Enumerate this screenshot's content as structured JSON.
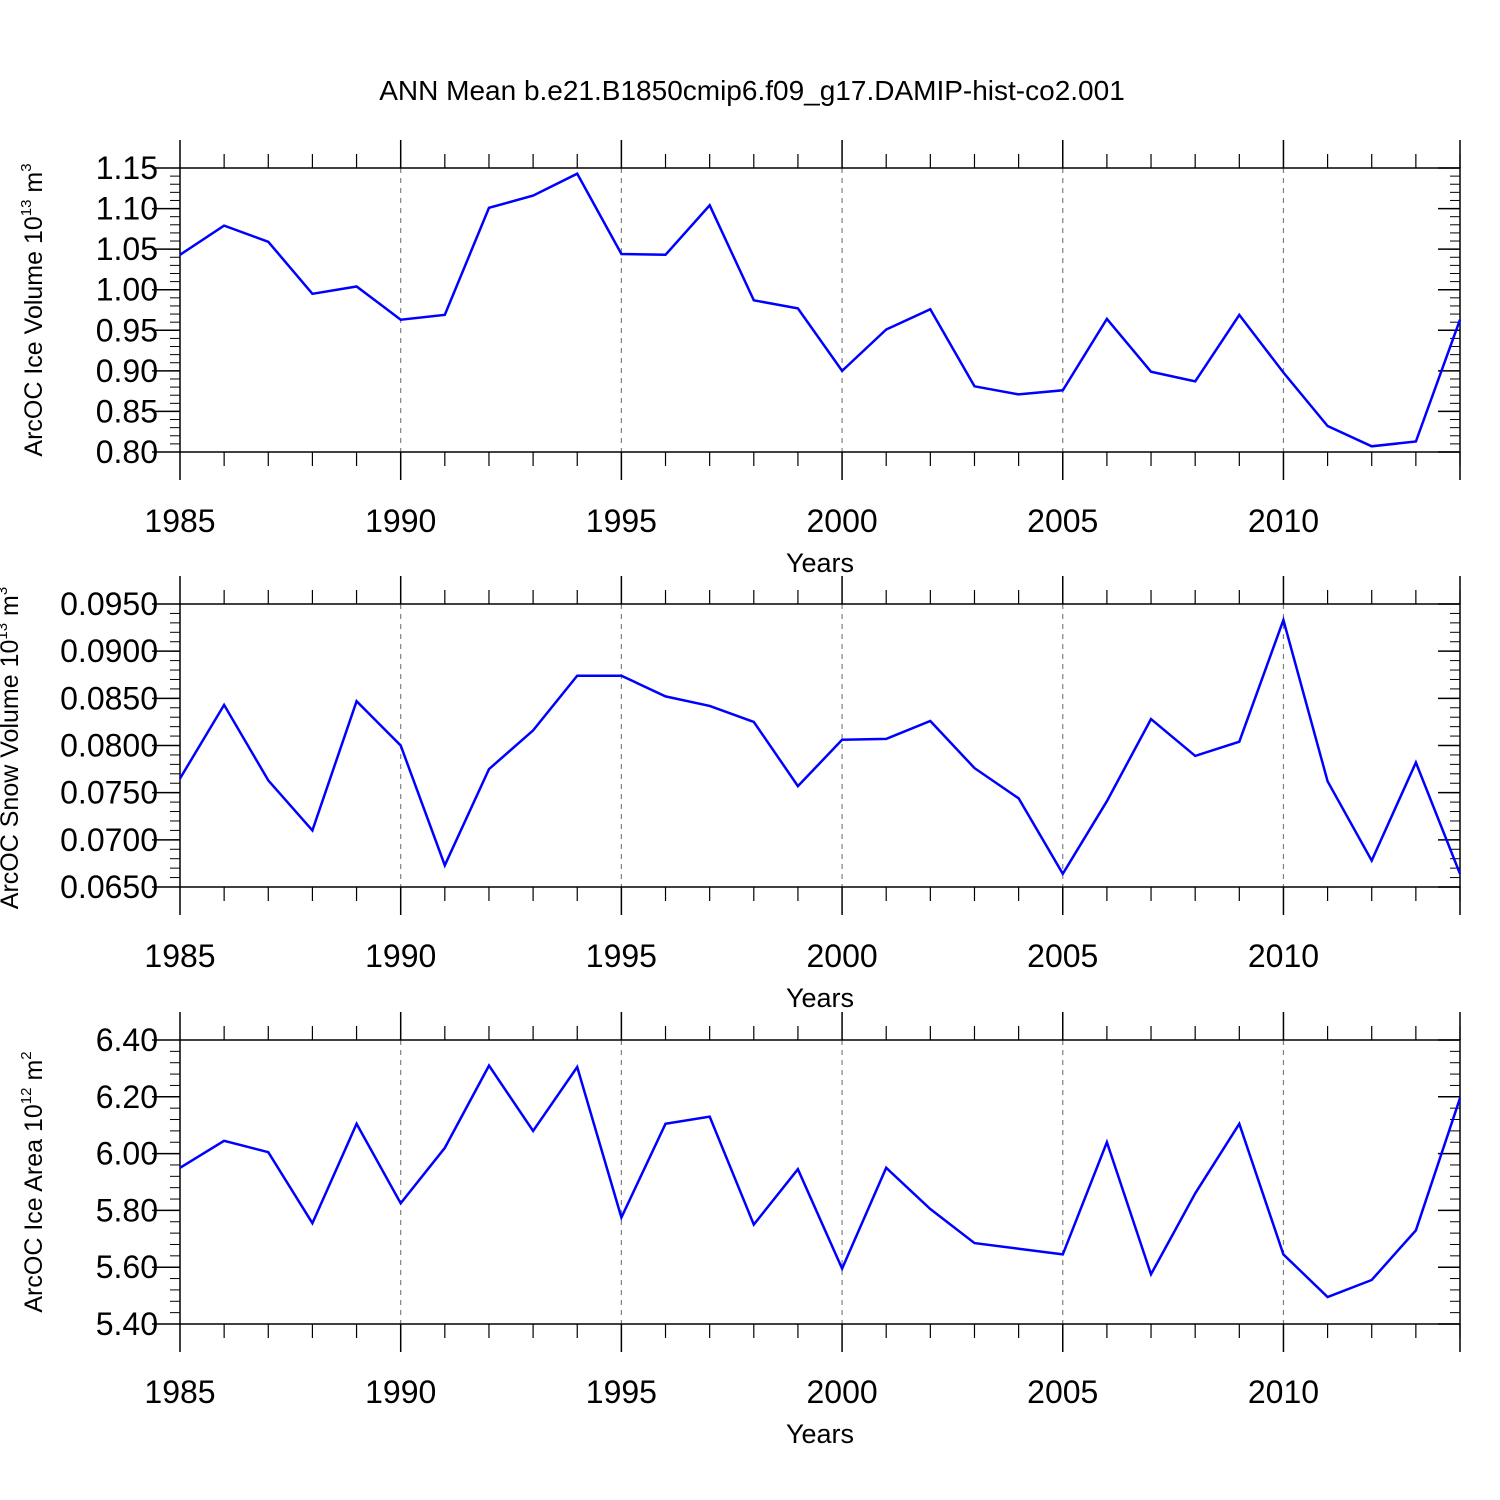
{
  "title": "ANN Mean b.e21.B1850cmip6.f09_g17.DAMIP-hist-co2.001",
  "colors": {
    "line": "#0000ff",
    "axis": "#000000",
    "grid": "#808080",
    "background": "#ffffff"
  },
  "chart_data": [
    {
      "type": "line",
      "title": "",
      "xlabel": "Years",
      "ylabel": {
        "main": "ArcOC Ice Volume 10",
        "sup": "13",
        "unit": " m",
        "unit_sup": "3"
      },
      "xlim": [
        1985,
        2014
      ],
      "ylim": [
        0.8,
        1.15
      ],
      "x_ticks": [
        1985,
        1990,
        1995,
        2000,
        2005,
        2010
      ],
      "x_tick_labels": [
        "1985",
        "1990",
        "1995",
        "2000",
        "2005",
        "2010"
      ],
      "y_ticks": [
        0.8,
        0.85,
        0.9,
        0.95,
        1.0,
        1.05,
        1.1,
        1.15
      ],
      "y_tick_labels": [
        "0.80",
        "0.85",
        "0.90",
        "0.95",
        "1.00",
        "1.05",
        "1.10",
        "1.15"
      ],
      "y_minor_step": 0.01,
      "grid": "vertical dashed at major x ticks",
      "series": [
        {
          "x": [
            1985,
            1986,
            1987,
            1988,
            1989,
            1990,
            1991,
            1992,
            1993,
            1994,
            1995,
            1996,
            1997,
            1998,
            1999,
            2000,
            2001,
            2002,
            2003,
            2004,
            2005,
            2006,
            2007,
            2008,
            2009,
            2010,
            2011,
            2012,
            2013,
            2014
          ],
          "values": [
            1.043,
            1.079,
            1.059,
            0.995,
            1.004,
            0.963,
            0.969,
            1.101,
            1.116,
            1.143,
            1.044,
            1.043,
            1.104,
            0.987,
            0.977,
            0.9,
            0.951,
            0.976,
            0.881,
            0.871,
            0.876,
            0.964,
            0.899,
            0.887,
            0.969,
            0.898,
            0.832,
            0.807,
            0.813,
            0.963
          ]
        }
      ]
    },
    {
      "type": "line",
      "title": "",
      "xlabel": "Years",
      "ylabel": {
        "main": "ArcOC Snow Volume 10",
        "sup": "13",
        "unit": " m",
        "unit_sup": "3"
      },
      "xlim": [
        1985,
        2014
      ],
      "ylim": [
        0.065,
        0.095
      ],
      "x_ticks": [
        1985,
        1990,
        1995,
        2000,
        2005,
        2010
      ],
      "x_tick_labels": [
        "1985",
        "1990",
        "1995",
        "2000",
        "2005",
        "2010"
      ],
      "y_ticks": [
        0.065,
        0.07,
        0.075,
        0.08,
        0.085,
        0.09,
        0.095
      ],
      "y_tick_labels": [
        "0.0650",
        "0.0700",
        "0.0750",
        "0.0800",
        "0.0850",
        "0.0900",
        "0.0950"
      ],
      "y_minor_step": 0.001,
      "grid": "vertical dashed at major x ticks",
      "series": [
        {
          "x": [
            1985,
            1986,
            1987,
            1988,
            1989,
            1990,
            1991,
            1992,
            1993,
            1994,
            1995,
            1996,
            1997,
            1998,
            1999,
            2000,
            2001,
            2002,
            2003,
            2004,
            2005,
            2006,
            2007,
            2008,
            2009,
            2010,
            2011,
            2012,
            2013,
            2014
          ],
          "values": [
            0.0765,
            0.0843,
            0.0763,
            0.071,
            0.0847,
            0.08,
            0.0673,
            0.0775,
            0.0816,
            0.0874,
            0.0874,
            0.0852,
            0.0842,
            0.0825,
            0.0757,
            0.0806,
            0.0807,
            0.0826,
            0.0776,
            0.0744,
            0.0664,
            0.0741,
            0.0828,
            0.0789,
            0.0804,
            0.0933,
            0.0762,
            0.0678,
            0.0782,
            0.0664
          ]
        }
      ]
    },
    {
      "type": "line",
      "title": "",
      "xlabel": "Years",
      "ylabel": {
        "main": "ArcOC Ice Area 10",
        "sup": "12",
        "unit": " m",
        "unit_sup": "2"
      },
      "xlim": [
        1985,
        2014
      ],
      "ylim": [
        5.4,
        6.4
      ],
      "x_ticks": [
        1985,
        1990,
        1995,
        2000,
        2005,
        2010
      ],
      "x_tick_labels": [
        "1985",
        "1990",
        "1995",
        "2000",
        "2005",
        "2010"
      ],
      "y_ticks": [
        5.4,
        5.6,
        5.8,
        6.0,
        6.2,
        6.4
      ],
      "y_tick_labels": [
        "5.40",
        "5.60",
        "5.80",
        "6.00",
        "6.20",
        "6.40"
      ],
      "y_minor_step": 0.04,
      "grid": "vertical dashed at major x ticks",
      "series": [
        {
          "x": [
            1985,
            1986,
            1987,
            1988,
            1989,
            1990,
            1991,
            1992,
            1993,
            1994,
            1995,
            1996,
            1997,
            1998,
            1999,
            2000,
            2001,
            2002,
            2003,
            2004,
            2005,
            2006,
            2007,
            2008,
            2009,
            2010,
            2011,
            2012,
            2013,
            2014
          ],
          "values": [
            5.95,
            6.045,
            6.005,
            5.755,
            6.105,
            5.825,
            6.02,
            6.31,
            6.08,
            6.305,
            5.775,
            6.105,
            6.13,
            5.75,
            5.945,
            5.595,
            5.95,
            5.805,
            5.685,
            5.665,
            5.645,
            6.04,
            5.575,
            5.86,
            6.105,
            5.645,
            5.495,
            5.555,
            5.73,
            6.195
          ]
        }
      ]
    }
  ]
}
